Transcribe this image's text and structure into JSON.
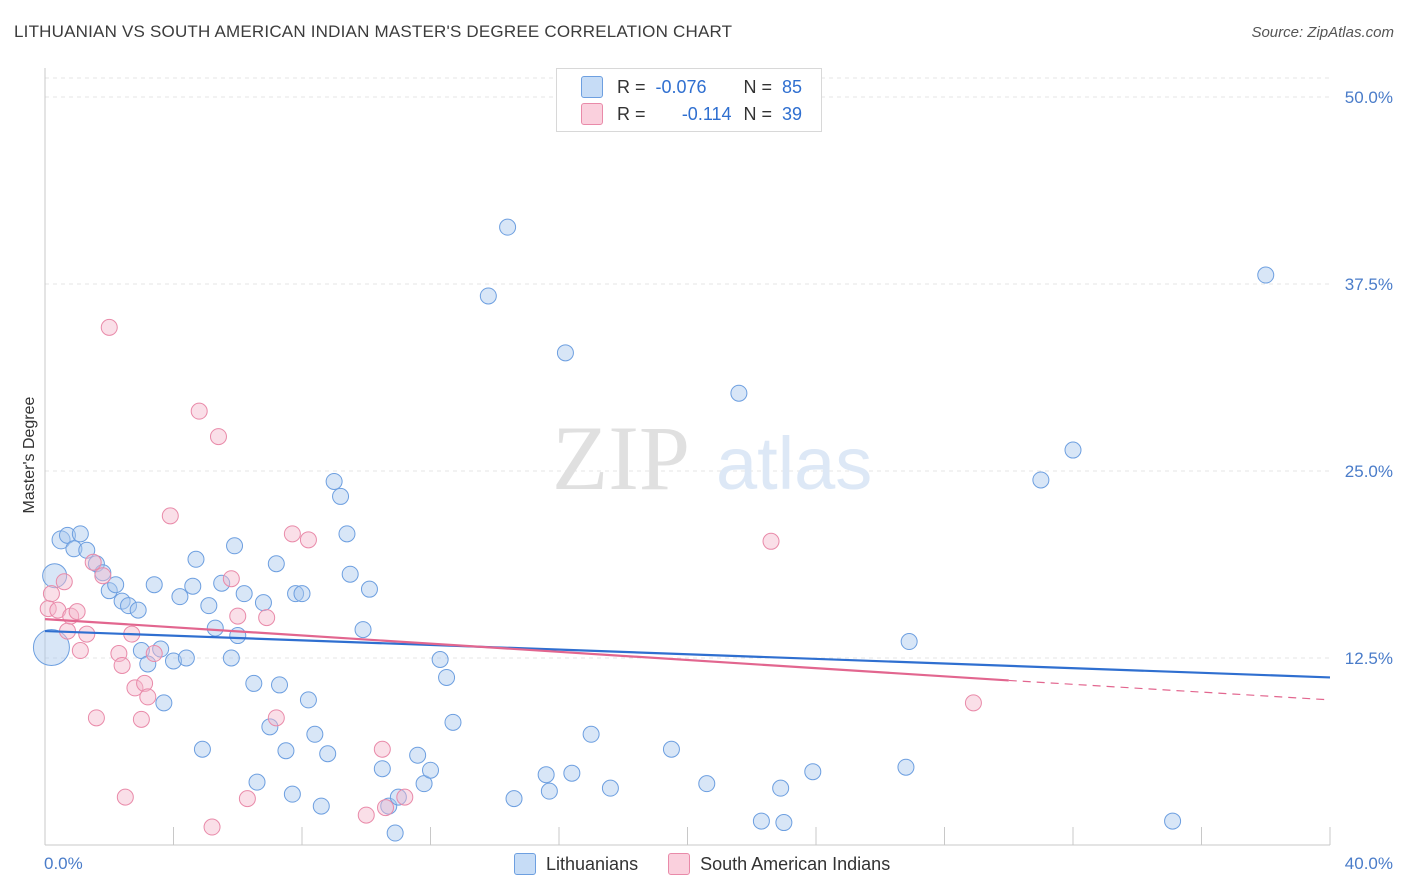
{
  "header": {
    "title": "LITHUANIAN VS SOUTH AMERICAN INDIAN MASTER'S DEGREE CORRELATION CHART",
    "source": "Source: ZipAtlas.com"
  },
  "legend": {
    "r_label": "R =",
    "n_label": "N =",
    "rows": [
      {
        "r": "-0.076",
        "n": "85",
        "color": "#a9c8ee"
      },
      {
        "r": "-0.114",
        "n": "39",
        "color": "#f5b8cb"
      }
    ]
  },
  "watermark": {
    "zip": "ZIP",
    "atlas": "atlas"
  },
  "chart_data": {
    "type": "scatter",
    "ylabel": "Master's Degree",
    "xlim": [
      0,
      40
    ],
    "ylim": [
      0,
      50
    ],
    "x_tick_labels": [
      "0.0%",
      "40.0%"
    ],
    "y_ticks": [
      12.5,
      25.0,
      37.5,
      50.0
    ],
    "y_tick_labels": [
      "12.5%",
      "25.0%",
      "37.5%",
      "50.0%"
    ],
    "grid": true,
    "series": [
      {
        "name": "Lithuanians",
        "color": "#a9c8ee",
        "stroke": "#6d9fe0",
        "trend": {
          "x": [
            0,
            40
          ],
          "y": [
            14.3,
            11.2
          ],
          "color": "#2f6fd0"
        },
        "points": [
          [
            0.2,
            13.2,
            18
          ],
          [
            0.3,
            18.0,
            12
          ],
          [
            0.5,
            20.4,
            9
          ],
          [
            0.7,
            20.7,
            8
          ],
          [
            0.9,
            19.8,
            8
          ],
          [
            1.1,
            20.8,
            8
          ],
          [
            1.3,
            19.7,
            8
          ],
          [
            1.6,
            18.8,
            8
          ],
          [
            1.8,
            18.2,
            8
          ],
          [
            2.0,
            17.0,
            8
          ],
          [
            2.2,
            17.4,
            8
          ],
          [
            2.4,
            16.3,
            8
          ],
          [
            2.6,
            16.0,
            8
          ],
          [
            2.9,
            15.7,
            8
          ],
          [
            3.0,
            13.0,
            8
          ],
          [
            3.2,
            12.1,
            8
          ],
          [
            3.4,
            17.4,
            8
          ],
          [
            3.6,
            13.1,
            8
          ],
          [
            3.7,
            9.5,
            8
          ],
          [
            4.0,
            12.3,
            8
          ],
          [
            4.2,
            16.6,
            8
          ],
          [
            4.4,
            12.5,
            8
          ],
          [
            4.6,
            17.3,
            8
          ],
          [
            4.7,
            19.1,
            8
          ],
          [
            4.9,
            6.4,
            8
          ],
          [
            5.1,
            16.0,
            8
          ],
          [
            5.3,
            14.5,
            8
          ],
          [
            5.5,
            17.5,
            8
          ],
          [
            5.8,
            12.5,
            8
          ],
          [
            5.9,
            20.0,
            8
          ],
          [
            6.0,
            14.0,
            8
          ],
          [
            6.2,
            16.8,
            8
          ],
          [
            6.5,
            10.8,
            8
          ],
          [
            6.6,
            4.2,
            8
          ],
          [
            6.8,
            16.2,
            8
          ],
          [
            7.0,
            7.9,
            8
          ],
          [
            7.2,
            18.8,
            8
          ],
          [
            7.3,
            10.7,
            8
          ],
          [
            7.5,
            6.3,
            8
          ],
          [
            7.7,
            3.4,
            8
          ],
          [
            7.8,
            16.8,
            8
          ],
          [
            8.0,
            16.8,
            8
          ],
          [
            8.2,
            9.7,
            8
          ],
          [
            8.4,
            7.4,
            8
          ],
          [
            8.6,
            2.6,
            8
          ],
          [
            8.8,
            6.1,
            8
          ],
          [
            9.0,
            24.3,
            8
          ],
          [
            9.2,
            23.3,
            8
          ],
          [
            9.4,
            20.8,
            8
          ],
          [
            9.5,
            18.1,
            8
          ],
          [
            9.9,
            14.4,
            8
          ],
          [
            10.1,
            17.1,
            8
          ],
          [
            10.5,
            5.1,
            8
          ],
          [
            10.7,
            2.6,
            8
          ],
          [
            10.9,
            0.8,
            8
          ],
          [
            11.0,
            3.2,
            8
          ],
          [
            11.6,
            6.0,
            8
          ],
          [
            11.8,
            4.1,
            8
          ],
          [
            12.0,
            5.0,
            8
          ],
          [
            12.3,
            12.4,
            8
          ],
          [
            12.5,
            11.2,
            8
          ],
          [
            12.7,
            8.2,
            8
          ],
          [
            13.8,
            36.7,
            8
          ],
          [
            14.4,
            41.3,
            8
          ],
          [
            14.6,
            3.1,
            8
          ],
          [
            15.6,
            4.7,
            8
          ],
          [
            15.7,
            3.6,
            8
          ],
          [
            16.2,
            32.9,
            8
          ],
          [
            16.4,
            4.8,
            8
          ],
          [
            17.0,
            7.4,
            8
          ],
          [
            17.6,
            3.8,
            8
          ],
          [
            19.5,
            6.4,
            8
          ],
          [
            20.6,
            4.1,
            8
          ],
          [
            21.6,
            30.2,
            8
          ],
          [
            22.3,
            1.6,
            8
          ],
          [
            22.9,
            3.8,
            8
          ],
          [
            23.0,
            1.5,
            8
          ],
          [
            23.9,
            4.9,
            8
          ],
          [
            26.8,
            5.2,
            8
          ],
          [
            26.9,
            13.6,
            8
          ],
          [
            31.0,
            24.4,
            8
          ],
          [
            32.0,
            26.4,
            8
          ],
          [
            35.1,
            1.6,
            8
          ],
          [
            38.0,
            38.1,
            8
          ]
        ]
      },
      {
        "name": "South American Indians",
        "color": "#f5b8cb",
        "stroke": "#e98aa9",
        "trend": {
          "x": [
            0,
            30
          ],
          "y": [
            15.1,
            11.0
          ],
          "color": "#e2668f"
        },
        "trend_dashed": {
          "x": [
            30,
            40
          ],
          "y": [
            11.0,
            9.7
          ]
        },
        "points": [
          [
            0.1,
            15.8,
            8
          ],
          [
            0.2,
            16.8,
            8
          ],
          [
            0.4,
            15.7,
            8
          ],
          [
            0.6,
            17.6,
            8
          ],
          [
            0.7,
            14.3,
            8
          ],
          [
            0.8,
            15.3,
            8
          ],
          [
            1.0,
            15.6,
            8
          ],
          [
            1.1,
            13.0,
            8
          ],
          [
            1.3,
            14.1,
            8
          ],
          [
            1.5,
            18.9,
            8
          ],
          [
            1.6,
            8.5,
            8
          ],
          [
            1.8,
            18.0,
            8
          ],
          [
            2.0,
            34.6,
            8
          ],
          [
            2.3,
            12.8,
            8
          ],
          [
            2.4,
            12.0,
            8
          ],
          [
            2.5,
            3.2,
            8
          ],
          [
            2.7,
            14.1,
            8
          ],
          [
            2.8,
            10.5,
            8
          ],
          [
            3.0,
            8.4,
            8
          ],
          [
            3.1,
            10.8,
            8
          ],
          [
            3.2,
            9.9,
            8
          ],
          [
            3.4,
            12.8,
            8
          ],
          [
            3.9,
            22.0,
            8
          ],
          [
            4.8,
            29.0,
            8
          ],
          [
            5.2,
            1.2,
            8
          ],
          [
            5.4,
            27.3,
            8
          ],
          [
            5.8,
            17.8,
            8
          ],
          [
            6.0,
            15.3,
            8
          ],
          [
            6.3,
            3.1,
            8
          ],
          [
            6.9,
            15.2,
            8
          ],
          [
            7.2,
            8.5,
            8
          ],
          [
            7.7,
            20.8,
            8
          ],
          [
            8.2,
            20.4,
            8
          ],
          [
            10.0,
            2.0,
            8
          ],
          [
            10.5,
            6.4,
            8
          ],
          [
            10.6,
            2.5,
            8
          ],
          [
            11.2,
            3.2,
            8
          ],
          [
            22.6,
            20.3,
            8
          ],
          [
            28.9,
            9.5,
            8
          ]
        ]
      }
    ]
  }
}
